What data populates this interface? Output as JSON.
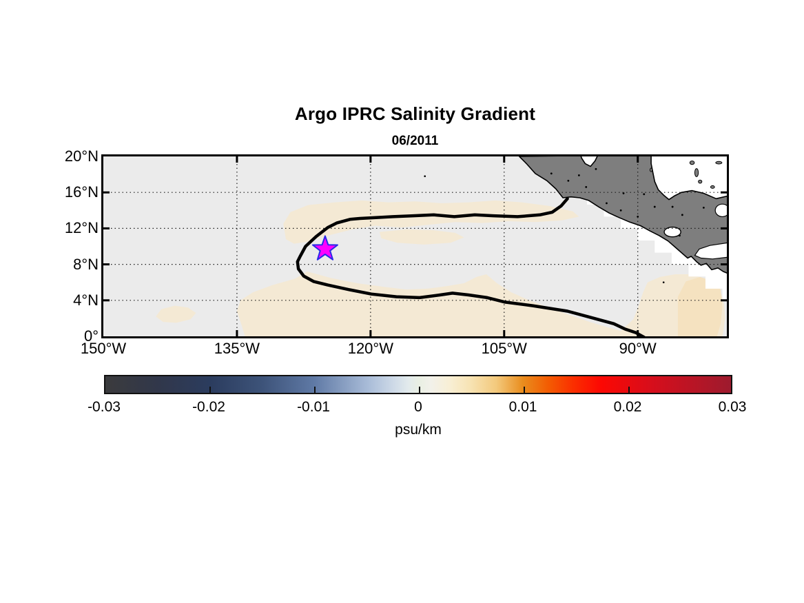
{
  "figure": {
    "title": "Argo IPRC Salinity Gradient",
    "subtitle": "06/2011",
    "colorbar_units": "psu/km"
  },
  "axes": {
    "x_tick_labels": [
      "150°W",
      "135°W",
      "120°W",
      "105°W",
      "90°W"
    ],
    "x_tick_lons": [
      -150,
      -135,
      -120,
      -105,
      -90
    ],
    "y_tick_labels": [
      "20°N",
      "16°N",
      "12°N",
      "8°N",
      "4°N",
      "0°"
    ],
    "y_tick_lats": [
      20,
      16,
      12,
      8,
      4,
      0
    ],
    "grid_style": "dotted"
  },
  "colorbar": {
    "tick_labels": [
      "-0.03",
      "-0.02",
      "-0.01",
      "0",
      "0.01",
      "0.02",
      "0.03"
    ],
    "tick_values": [
      -0.03,
      -0.02,
      -0.01,
      0,
      0.01,
      0.02,
      0.03
    ],
    "range": [
      -0.03,
      0.03
    ],
    "units_label": "psu/km",
    "gradient_stops": [
      [
        0.0,
        "#3b3b3d"
      ],
      [
        0.083,
        "#31374a"
      ],
      [
        0.167,
        "#2b3c5e"
      ],
      [
        0.25,
        "#3d5379"
      ],
      [
        0.333,
        "#5f79a5"
      ],
      [
        0.42,
        "#a9bcd8"
      ],
      [
        0.46,
        "#cdd9e7"
      ],
      [
        0.484,
        "#e2eaec"
      ],
      [
        0.502,
        "#e9efe3"
      ],
      [
        0.52,
        "#f2f1ea"
      ],
      [
        0.55,
        "#f8efd5"
      ],
      [
        0.583,
        "#f7e3b4"
      ],
      [
        0.625,
        "#f3c97c"
      ],
      [
        0.667,
        "#e98d1e"
      ],
      [
        0.708,
        "#f35c02"
      ],
      [
        0.75,
        "#fb2c00"
      ],
      [
        0.792,
        "#fc0803"
      ],
      [
        0.875,
        "#d60e1c"
      ],
      [
        1.0,
        "#9d1b2e"
      ]
    ]
  },
  "chart_data": {
    "type": "heatmap",
    "title": "Argo IPRC Salinity Gradient",
    "subtitle": "06/2011",
    "units": "psu/km",
    "lon_range": [
      -150,
      -80
    ],
    "lat_range": [
      0,
      20
    ],
    "value_range": [
      -0.03,
      0.03
    ],
    "colors": {
      "ocean_field": "#ebebeb",
      "tan_shade": "#f4e9d4",
      "tan_shade_deep": "#f5e2c0",
      "land": "#7e7e7e",
      "land_edge": "#000000",
      "contour": "#000000",
      "grid": "#1a1a1a",
      "marker_fill": "#ff00ff",
      "marker_edge": "#2a2ae8",
      "nodata": "#ffffff"
    },
    "marker": {
      "type": "star",
      "lon": -125.1,
      "lat": 9.7
    },
    "contour_level_points": [
      [
        -97.9,
        15.3
      ],
      [
        -98.6,
        14.5
      ],
      [
        -99.6,
        13.8
      ],
      [
        -101.0,
        13.5
      ],
      [
        -103.5,
        13.3
      ],
      [
        -106.2,
        13.4
      ],
      [
        -108.3,
        13.5
      ],
      [
        -110.6,
        13.3
      ],
      [
        -112.9,
        13.5
      ],
      [
        -115.2,
        13.4
      ],
      [
        -117.5,
        13.3
      ],
      [
        -119.4,
        13.2
      ],
      [
        -121.2,
        13.1
      ],
      [
        -122.3,
        13.0
      ],
      [
        -123.8,
        12.6
      ],
      [
        -124.8,
        12.1
      ],
      [
        -126.1,
        11.1
      ],
      [
        -127.3,
        10.0
      ],
      [
        -127.9,
        8.9
      ],
      [
        -128.2,
        8.3
      ],
      [
        -128.1,
        7.5
      ],
      [
        -127.5,
        6.7
      ],
      [
        -126.4,
        6.1
      ],
      [
        -124.8,
        5.7
      ],
      [
        -122.5,
        5.2
      ],
      [
        -119.9,
        4.7
      ],
      [
        -117.1,
        4.4
      ],
      [
        -114.5,
        4.3
      ],
      [
        -112.2,
        4.6
      ],
      [
        -110.8,
        4.8
      ],
      [
        -109.0,
        4.6
      ],
      [
        -106.9,
        4.3
      ],
      [
        -104.9,
        3.8
      ],
      [
        -101.8,
        3.4
      ],
      [
        -97.9,
        2.8
      ],
      [
        -95.3,
        2.1
      ],
      [
        -92.7,
        1.4
      ],
      [
        -91.4,
        0.8
      ],
      [
        -90.2,
        0.4
      ],
      [
        -89.3,
        -0.1
      ]
    ],
    "shaded_regions": [
      {
        "name": "north-band",
        "color_key": "tan_shade",
        "points": [
          [
            -129.8,
            12.5
          ],
          [
            -129.0,
            13.8
          ],
          [
            -127.0,
            14.6
          ],
          [
            -124.0,
            14.9
          ],
          [
            -121.0,
            15.1
          ],
          [
            -118.0,
            14.9
          ],
          [
            -115.0,
            15.0
          ],
          [
            -112.0,
            14.8
          ],
          [
            -109.0,
            14.9
          ],
          [
            -106.0,
            15.1
          ],
          [
            -103.0,
            14.9
          ],
          [
            -100.0,
            14.5
          ],
          [
            -97.3,
            13.9
          ],
          [
            -96.6,
            13.3
          ],
          [
            -98.5,
            12.9
          ],
          [
            -101.5,
            12.7
          ],
          [
            -104.5,
            12.8
          ],
          [
            -107.5,
            12.6
          ],
          [
            -110.5,
            12.7
          ],
          [
            -113.5,
            12.4
          ],
          [
            -116.5,
            12.1
          ],
          [
            -119.5,
            12.3
          ],
          [
            -122.0,
            11.9
          ],
          [
            -124.0,
            11.4
          ],
          [
            -125.6,
            11.0
          ],
          [
            -127.2,
            10.5
          ],
          [
            -128.6,
            10.3
          ],
          [
            -129.5,
            10.8
          ]
        ]
      },
      {
        "name": "mid-strip",
        "color_key": "tan_shade",
        "points": [
          [
            -119.0,
            11.6
          ],
          [
            -116.0,
            11.9
          ],
          [
            -113.0,
            11.8
          ],
          [
            -110.5,
            11.5
          ],
          [
            -109.5,
            11.0
          ],
          [
            -111.0,
            10.4
          ],
          [
            -114.0,
            10.2
          ],
          [
            -117.0,
            10.4
          ],
          [
            -118.8,
            10.9
          ]
        ]
      },
      {
        "name": "south-band",
        "color_key": "tan_shade",
        "points": [
          [
            -134.1,
            0.0
          ],
          [
            -134.5,
            1.3
          ],
          [
            -135.0,
            2.8
          ],
          [
            -134.6,
            4.0
          ],
          [
            -133.2,
            4.9
          ],
          [
            -131.0,
            5.7
          ],
          [
            -128.5,
            6.4
          ],
          [
            -127.1,
            7.2
          ],
          [
            -124.5,
            6.5
          ],
          [
            -121.5,
            5.9
          ],
          [
            -118.5,
            5.5
          ],
          [
            -116.0,
            5.2
          ],
          [
            -113.5,
            5.3
          ],
          [
            -111.3,
            5.6
          ],
          [
            -109.5,
            5.9
          ],
          [
            -108.1,
            6.6
          ],
          [
            -107.0,
            6.9
          ],
          [
            -105.8,
            5.9
          ],
          [
            -104.2,
            4.9
          ],
          [
            -102.2,
            4.0
          ],
          [
            -100.0,
            3.2
          ],
          [
            -97.7,
            2.4
          ],
          [
            -95.4,
            1.6
          ],
          [
            -93.4,
            1.0
          ],
          [
            -91.9,
            0.6
          ],
          [
            -90.5,
            1.9
          ],
          [
            -89.9,
            3.4
          ],
          [
            -89.4,
            4.9
          ],
          [
            -88.9,
            6.0
          ],
          [
            -87.5,
            6.6
          ],
          [
            -85.8,
            6.9
          ],
          [
            -84.0,
            6.9
          ],
          [
            -82.5,
            6.4
          ],
          [
            -81.4,
            5.7
          ],
          [
            -80.6,
            4.7
          ],
          [
            -80.3,
            3.5
          ],
          [
            -80.2,
            2.0
          ],
          [
            -80.4,
            0.5
          ],
          [
            -80.5,
            0.0
          ]
        ]
      },
      {
        "name": "southeast-deep",
        "color_key": "tan_shade_deep",
        "points": [
          [
            -85.5,
            0.0
          ],
          [
            -85.5,
            4.4
          ],
          [
            -84.6,
            6.1
          ],
          [
            -83.0,
            6.6
          ],
          [
            -81.5,
            6.1
          ],
          [
            -80.7,
            5.2
          ],
          [
            -80.5,
            3.3
          ],
          [
            -80.7,
            1.4
          ],
          [
            -81.1,
            0.0
          ]
        ]
      },
      {
        "name": "southwest-blob",
        "color_key": "tan_shade",
        "points": [
          [
            -144.1,
            2.2
          ],
          [
            -143.5,
            3.0
          ],
          [
            -142.0,
            3.4
          ],
          [
            -140.5,
            3.2
          ],
          [
            -139.6,
            2.6
          ],
          [
            -140.2,
            1.9
          ],
          [
            -141.8,
            1.5
          ],
          [
            -143.3,
            1.6
          ]
        ]
      }
    ],
    "nodata_stair_boundary": [
      [
        -103.3,
        20.0
      ],
      [
        -101.4,
        18.65
      ],
      [
        -99.5,
        17.3
      ],
      [
        -97.6,
        16.0
      ],
      [
        -95.7,
        14.65
      ],
      [
        -93.8,
        13.3
      ],
      [
        -91.9,
        12.0
      ],
      [
        -90.0,
        10.65
      ],
      [
        -88.1,
        9.3
      ],
      [
        -86.2,
        8.0
      ],
      [
        -84.3,
        6.65
      ],
      [
        -82.4,
        5.3
      ],
      [
        -80.5,
        4.0
      ],
      [
        -80.0,
        3.65
      ]
    ],
    "land_polygon": [
      [
        -103.3,
        20.0
      ],
      [
        -102.5,
        19.2
      ],
      [
        -101.5,
        18.1
      ],
      [
        -100.2,
        17.3
      ],
      [
        -99.2,
        16.4
      ],
      [
        -98.4,
        15.4
      ],
      [
        -97.5,
        15.5
      ],
      [
        -96.5,
        15.4
      ],
      [
        -95.5,
        15.1
      ],
      [
        -94.4,
        14.4
      ],
      [
        -93.2,
        13.7
      ],
      [
        -92.1,
        13.2
      ],
      [
        -90.9,
        12.7
      ],
      [
        -89.7,
        12.3
      ],
      [
        -88.6,
        11.7
      ],
      [
        -87.6,
        11.2
      ],
      [
        -86.6,
        10.6
      ],
      [
        -85.9,
        10.0
      ],
      [
        -85.1,
        9.3
      ],
      [
        -84.4,
        8.7
      ],
      [
        -84.0,
        8.9
      ],
      [
        -83.4,
        8.3
      ],
      [
        -82.9,
        7.9
      ],
      [
        -82.3,
        8.1
      ],
      [
        -81.7,
        7.4
      ],
      [
        -81.0,
        7.6
      ],
      [
        -80.4,
        7.2
      ],
      [
        -79.9,
        7.0
      ],
      [
        -79.9,
        15.6
      ],
      [
        -81.2,
        15.3
      ],
      [
        -82.6,
        15.9
      ],
      [
        -83.9,
        16.2
      ],
      [
        -85.1,
        16.0
      ],
      [
        -85.9,
        15.6
      ],
      [
        -86.5,
        15.2
      ],
      [
        -87.1,
        15.7
      ],
      [
        -87.7,
        16.3
      ],
      [
        -88.1,
        17.2
      ],
      [
        -88.3,
        18.2
      ],
      [
        -88.5,
        19.2
      ],
      [
        -88.5,
        20.1
      ],
      [
        -94.5,
        20.1
      ],
      [
        -94.8,
        19.5
      ],
      [
        -95.3,
        18.9
      ],
      [
        -95.9,
        19.2
      ],
      [
        -96.3,
        19.8
      ],
      [
        -96.4,
        20.1
      ]
    ],
    "caribbean_inlets": [
      {
        "name": "panama-gap",
        "points": [
          [
            -79.9,
            10.4
          ],
          [
            -81.9,
            10.1
          ],
          [
            -83.1,
            9.7
          ],
          [
            -83.6,
            9.0
          ],
          [
            -82.9,
            8.7
          ],
          [
            -81.6,
            8.6
          ],
          [
            -79.9,
            8.8
          ]
        ]
      }
    ],
    "lake": {
      "name": "lake-nicaragua",
      "lon": -86.1,
      "lat": 11.6,
      "rlon": 0.93,
      "rlat": 0.54
    },
    "coast_notch": {
      "lon": -80.5,
      "lat": 14.0,
      "rlon": 0.8,
      "rlat": 0.7
    },
    "islands": [
      {
        "lon": -83.9,
        "lat": 19.3,
        "rlon": 0.25,
        "rlat": 0.2
      },
      {
        "lon": -83.4,
        "lat": 18.2,
        "rlon": 0.2,
        "rlat": 0.45
      },
      {
        "lon": -83.0,
        "lat": 17.2,
        "rlon": 0.2,
        "rlat": 0.18
      },
      {
        "lon": -81.6,
        "lat": 16.6,
        "rlon": 0.22,
        "rlat": 0.15
      },
      {
        "lon": -80.9,
        "lat": 19.3,
        "rlon": 0.35,
        "rlat": 0.14
      },
      {
        "lon": -88.5,
        "lat": 18.5,
        "rlon": 0.12,
        "rlat": 0.2
      }
    ],
    "land_speckles": [
      [
        -99.7,
        18.1
      ],
      [
        -97.8,
        17.3
      ],
      [
        -95.8,
        16.6
      ],
      [
        -93.5,
        14.8
      ],
      [
        -91.9,
        14.0
      ],
      [
        -90.0,
        13.3
      ],
      [
        -88.1,
        14.4
      ],
      [
        -94.7,
        18.6
      ],
      [
        -91.6,
        15.9
      ],
      [
        -86.1,
        14.4
      ],
      [
        -85.0,
        13.5
      ],
      [
        -82.6,
        14.3
      ],
      [
        -85.3,
        11.2
      ],
      [
        -96.6,
        17.9
      ],
      [
        -89.3,
        15.8
      ]
    ],
    "ocean_speckles": [
      [
        -113.9,
        17.8
      ],
      [
        -87.1,
        6.0
      ]
    ]
  }
}
